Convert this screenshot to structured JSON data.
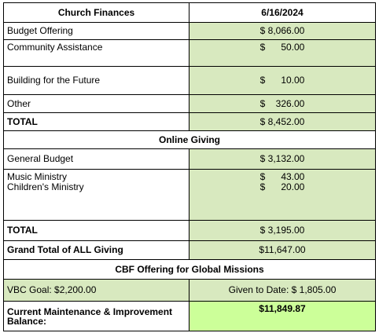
{
  "table": {
    "header": [
      "Church Finances",
      "6/16/2024"
    ],
    "rows": [
      [
        "Budget Offering",
        "$ 8,066.00"
      ],
      [
        "Community Assistance",
        "$      50.00"
      ],
      [
        "Building for the Future",
        "$      10.00"
      ],
      [
        "Other",
        "$    326.00"
      ],
      [
        "TOTAL",
        "$ 8,452.00"
      ]
    ],
    "online_title": "Online Giving",
    "online_rows": [
      [
        "General Budget",
        "$ 3,132.00"
      ]
    ],
    "ministries": [
      [
        "Music Ministry",
        "$      43.00"
      ],
      [
        "Children's Ministry",
        "$      20.00"
      ]
    ],
    "online_total": [
      "TOTAL",
      "$ 3,195.00"
    ],
    "grand_total": [
      "Grand Total of ALL Giving",
      "$11,647.00"
    ],
    "cbf_title": "CBF Offering for Global Missions",
    "cbf": [
      "VBC Goal: $2,200.00",
      "Given to Date: $ 1,805.00"
    ],
    "balance": [
      "Current Maintenance & Improvement Balance:",
      "$11,849.87"
    ]
  }
}
